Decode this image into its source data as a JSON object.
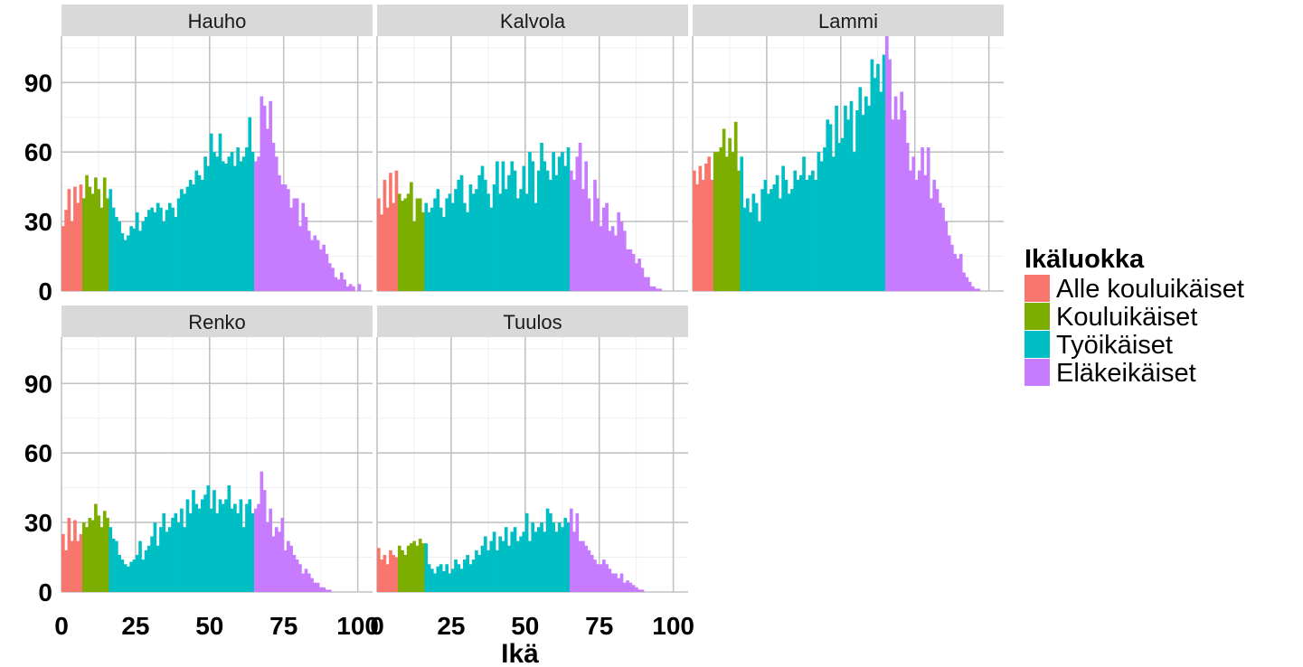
{
  "chart_data": {
    "type": "bar",
    "xlabel": "Ikä",
    "ylabel": "",
    "xlim": [
      0,
      105
    ],
    "ylim": [
      0,
      110
    ],
    "x_ticks": [
      0,
      25,
      50,
      75,
      100
    ],
    "y_ticks": [
      0,
      30,
      60,
      90
    ],
    "grid": true,
    "legend": {
      "title": "Ikäluokka",
      "position": "right",
      "items": [
        {
          "name": "Alle kouluikäiset",
          "color": "#F8766D",
          "age_from": 0,
          "age_to": 6
        },
        {
          "name": "Kouluikäiset",
          "color": "#7CAE00",
          "age_from": 7,
          "age_to": 15
        },
        {
          "name": "Työikäiset",
          "color": "#00BFC4",
          "age_from": 16,
          "age_to": 64
        },
        {
          "name": "Eläkeikäiset",
          "color": "#C77CFF",
          "age_from": 65,
          "age_to": 105
        }
      ]
    },
    "panels": [
      {
        "name": "Hauho",
        "ages_start": 0,
        "values": [
          28,
          35,
          44,
          30,
          45,
          38,
          46,
          40,
          50,
          45,
          42,
          49,
          44,
          36,
          49,
          40,
          44,
          36,
          32,
          30,
          25,
          22,
          24,
          28,
          27,
          34,
          26,
          30,
          32,
          35,
          36,
          34,
          38,
          36,
          30,
          35,
          38,
          36,
          32,
          40,
          44,
          42,
          45,
          48,
          46,
          52,
          50,
          48,
          58,
          54,
          68,
          60,
          58,
          68,
          56,
          55,
          58,
          60,
          54,
          62,
          56,
          58,
          62,
          75,
          60,
          56,
          58,
          84,
          80,
          70,
          82,
          64,
          58,
          50,
          46,
          46,
          44,
          36,
          40,
          40,
          28,
          38,
          32,
          26,
          22,
          24,
          22,
          18,
          20,
          16,
          12,
          10,
          6,
          5,
          8,
          5,
          2,
          3,
          2,
          0,
          3,
          0,
          0,
          0,
          0,
          0
        ]
      },
      {
        "name": "Kalvola",
        "ages_start": 0,
        "values": [
          40,
          33,
          48,
          36,
          51,
          38,
          52,
          42,
          39,
          40,
          42,
          47,
          30,
          40,
          40,
          34,
          38,
          34,
          36,
          40,
          44,
          36,
          32,
          40,
          42,
          38,
          44,
          48,
          50,
          38,
          34,
          46,
          42,
          44,
          50,
          54,
          48,
          42,
          36,
          46,
          56,
          42,
          56,
          44,
          50,
          56,
          52,
          40,
          44,
          54,
          42,
          60,
          56,
          38,
          52,
          64,
          56,
          52,
          48,
          60,
          50,
          58,
          60,
          54,
          62,
          52,
          48,
          58,
          64,
          44,
          56,
          40,
          30,
          48,
          40,
          28,
          36,
          38,
          26,
          28,
          24,
          34,
          30,
          26,
          18,
          18,
          16,
          12,
          14,
          10,
          6,
          6,
          2,
          2,
          1,
          1,
          0,
          0,
          0,
          0,
          0,
          0,
          0,
          0,
          0,
          0
        ]
      },
      {
        "name": "Lammi",
        "ages_start": 0,
        "values": [
          52,
          46,
          54,
          48,
          55,
          58,
          48,
          60,
          60,
          62,
          70,
          58,
          66,
          60,
          73,
          52,
          58,
          36,
          40,
          34,
          42,
          38,
          30,
          44,
          48,
          42,
          44,
          46,
          50,
          40,
          54,
          48,
          42,
          44,
          52,
          48,
          50,
          58,
          48,
          50,
          52,
          48,
          60,
          56,
          62,
          74,
          72,
          58,
          80,
          64,
          66,
          80,
          74,
          82,
          60,
          78,
          88,
          76,
          84,
          80,
          100,
          92,
          98,
          86,
          102,
          110,
          100,
          74,
          84,
          74,
          86,
          78,
          64,
          52,
          58,
          48,
          52,
          62,
          50,
          62,
          40,
          48,
          44,
          38,
          36,
          30,
          24,
          20,
          16,
          14,
          16,
          8,
          6,
          4,
          2,
          1,
          1,
          0,
          0,
          0,
          0,
          0,
          0,
          0,
          0,
          0
        ]
      },
      {
        "name": "Renko",
        "ages_start": 0,
        "values": [
          25,
          18,
          32,
          22,
          31,
          22,
          25,
          30,
          28,
          32,
          31,
          38,
          33,
          28,
          35,
          32,
          28,
          23,
          22,
          16,
          14,
          12,
          11,
          13,
          14,
          16,
          22,
          14,
          18,
          20,
          24,
          30,
          20,
          28,
          34,
          26,
          28,
          32,
          34,
          30,
          36,
          28,
          40,
          34,
          44,
          38,
          36,
          40,
          42,
          46,
          36,
          44,
          34,
          40,
          38,
          40,
          46,
          36,
          38,
          34,
          40,
          28,
          38,
          40,
          34,
          36,
          38,
          52,
          44,
          30,
          36,
          24,
          28,
          26,
          32,
          18,
          22,
          20,
          16,
          14,
          12,
          8,
          10,
          8,
          6,
          4,
          4,
          2,
          2,
          1,
          1,
          0,
          0,
          0,
          0,
          0,
          0,
          0,
          0,
          0,
          0,
          0,
          0,
          0,
          0,
          0
        ]
      },
      {
        "name": "Tuulos",
        "ages_start": 0,
        "values": [
          19,
          14,
          16,
          12,
          18,
          16,
          15,
          20,
          18,
          16,
          20,
          21,
          22,
          20,
          23,
          21,
          21,
          12,
          10,
          8,
          11,
          12,
          9,
          12,
          8,
          10,
          14,
          12,
          10,
          14,
          16,
          12,
          14,
          18,
          16,
          20,
          24,
          18,
          22,
          26,
          18,
          24,
          22,
          28,
          20,
          26,
          28,
          22,
          24,
          26,
          34,
          22,
          30,
          26,
          28,
          30,
          26,
          36,
          34,
          30,
          26,
          30,
          28,
          32,
          30,
          36,
          26,
          34,
          22,
          22,
          20,
          18,
          16,
          14,
          12,
          12,
          14,
          12,
          10,
          8,
          8,
          6,
          8,
          4,
          5,
          4,
          3,
          2,
          1,
          1,
          0,
          0,
          0,
          0,
          0,
          0,
          0,
          0,
          0,
          0,
          0,
          0,
          0,
          0,
          0,
          0
        ]
      }
    ]
  }
}
